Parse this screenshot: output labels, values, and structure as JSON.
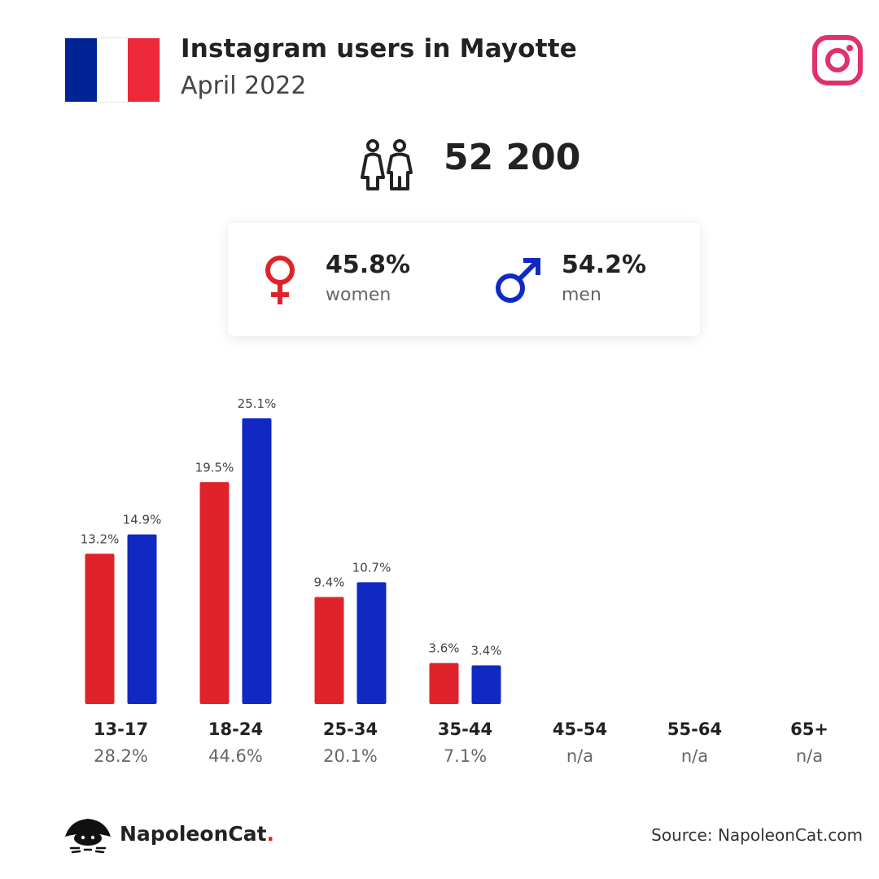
{
  "header": {
    "title": "Instagram users in Mayotte",
    "subtitle": "April 2022",
    "flag_colors": [
      "#002395",
      "#ffffff",
      "#ed2939"
    ],
    "flag_icon": "france-flag-icon",
    "platform_icon": "instagram-icon",
    "platform_color": "#e1306c"
  },
  "total": {
    "icon": "users-icon",
    "value": "52 200"
  },
  "gender": {
    "women": {
      "icon": "female-symbol-icon",
      "percent": "45.8%",
      "label": "women",
      "color": "#e0232a"
    },
    "men": {
      "icon": "male-symbol-icon",
      "percent": "54.2%",
      "label": "men",
      "color": "#1029c2"
    }
  },
  "chart_data": {
    "type": "bar",
    "categories": [
      "13-17",
      "18-24",
      "25-34",
      "35-44",
      "45-54",
      "55-64",
      "65+"
    ],
    "category_totals": [
      "28.2%",
      "44.6%",
      "20.1%",
      "7.1%",
      "n/a",
      "n/a",
      "n/a"
    ],
    "series": [
      {
        "name": "women",
        "color": "#e0232a",
        "values": [
          13.2,
          19.5,
          9.4,
          3.6,
          null,
          null,
          null
        ],
        "labels": [
          "13.2%",
          "19.5%",
          "9.4%",
          "3.6%",
          null,
          null,
          null
        ]
      },
      {
        "name": "men",
        "color": "#1029c2",
        "values": [
          14.9,
          25.1,
          10.7,
          3.4,
          null,
          null,
          null
        ],
        "labels": [
          "14.9%",
          "25.1%",
          "10.7%",
          "3.4%",
          null,
          null,
          null
        ]
      }
    ],
    "ylim": [
      0,
      25.1
    ],
    "grid": false,
    "legend": "none"
  },
  "footer": {
    "brand": "NapoleonCat",
    "brand_dot": ".",
    "logo_icon": "napoleoncat-logo-icon",
    "source": "Source: NapoleonCat.com"
  }
}
